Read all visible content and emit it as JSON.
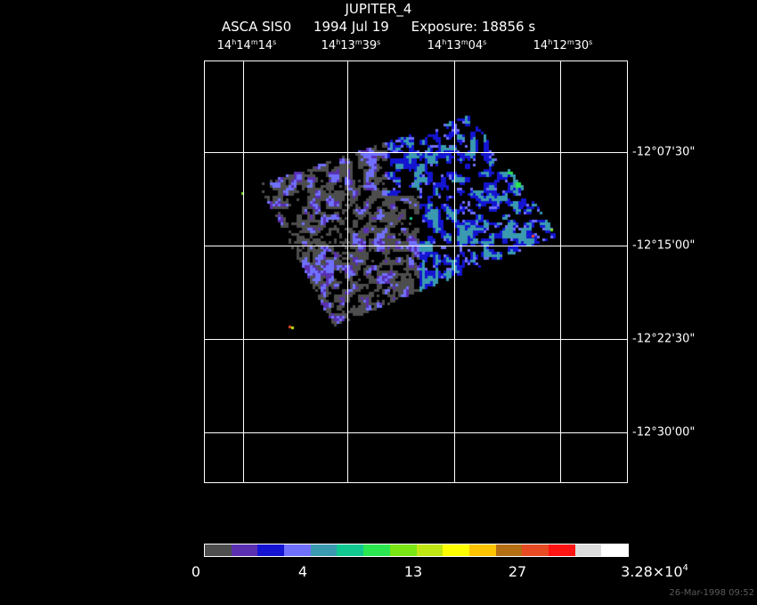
{
  "header": {
    "object": "JUPITER_4",
    "instrument": "ASCA SIS0",
    "date": "1994 Jul 19",
    "exposure": "Exposure: 18856 s"
  },
  "ra_axis": [
    {
      "h": "14",
      "m": "14",
      "s": "14"
    },
    {
      "h": "14",
      "m": "13",
      "s": "39"
    },
    {
      "h": "14",
      "m": "13",
      "s": "04"
    },
    {
      "h": "14",
      "m": "12",
      "s": "30"
    }
  ],
  "dec_axis": [
    "-12°07'30\"",
    "-12°15'00\"",
    "-12°22'30\"",
    "-12°30'00\""
  ],
  "colorbar": {
    "colors": [
      "#4d4d4d",
      "#5a2fb0",
      "#1414d2",
      "#7070ff",
      "#3a9ab0",
      "#10c890",
      "#2ae650",
      "#7ae614",
      "#c0e614",
      "#ffff00",
      "#ffc400",
      "#b46e14",
      "#e64b23",
      "#ff1414",
      "#dcdcdc",
      "#ffffff"
    ],
    "labels": [
      {
        "text": "0"
      },
      {
        "text": "4"
      },
      {
        "text": "13"
      },
      {
        "text": "27"
      },
      {
        "text": "3.28×10",
        "sup": "4"
      }
    ]
  },
  "timestamp": "26-Mar-1998 09:52"
}
